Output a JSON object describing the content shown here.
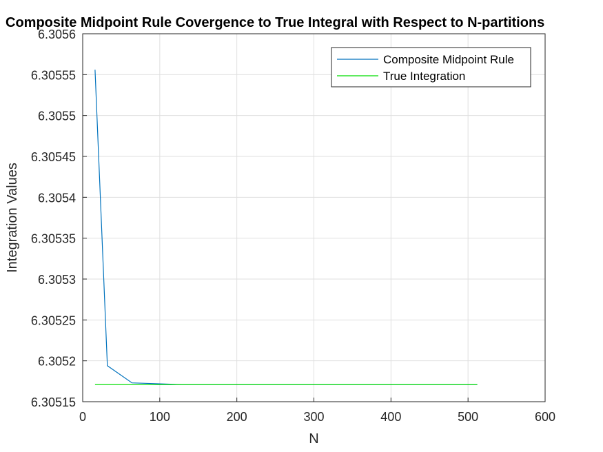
{
  "chart_data": {
    "type": "line",
    "title": "Composite Midpoint Rule Covergence to True Integral with Respect to N-partitions",
    "xlabel": "N",
    "ylabel": "Integration Values",
    "xlim": [
      0,
      600
    ],
    "ylim": [
      6.30515,
      6.3056
    ],
    "x_ticks": [
      "0",
      "100",
      "200",
      "300",
      "400",
      "500",
      "600"
    ],
    "y_ticks": [
      "6.30515",
      "6.3052",
      "6.30525",
      "6.3053",
      "6.30535",
      "6.3054",
      "6.30545",
      "6.3055",
      "6.30555",
      "6.3056"
    ],
    "grid": true,
    "legend_position": "top-right",
    "series": [
      {
        "name": "Composite Midpoint Rule",
        "color": "#0072BD",
        "x": [
          16,
          32,
          64,
          128,
          256,
          512
        ],
        "y": [
          6.305556,
          6.305194,
          6.305173,
          6.305171,
          6.305171,
          6.305171
        ]
      },
      {
        "name": "True Integration",
        "color": "#00DD00",
        "x": [
          16,
          512
        ],
        "y": [
          6.305171,
          6.305171
        ]
      }
    ]
  }
}
